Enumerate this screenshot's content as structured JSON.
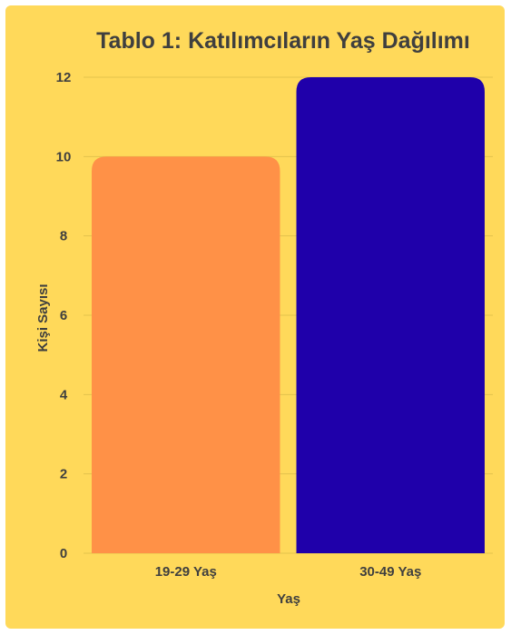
{
  "chart_data": {
    "type": "bar",
    "title": "Tablo 1: Katılımcıların Yaş Dağılımı",
    "xlabel": "Yaş",
    "ylabel": "Kişi Sayısı",
    "categories": [
      "19-29 Yaş",
      "30-49 Yaş"
    ],
    "values": [
      10,
      12
    ],
    "bar_colors": [
      "#ff9147",
      "#1f00aa"
    ],
    "ylim": [
      0,
      12
    ],
    "yticks": [
      "0",
      "2",
      "4",
      "6",
      "8",
      "10",
      "12"
    ],
    "grid": true,
    "legend": "none"
  },
  "colors": {
    "background": "#ffd95a",
    "gridline": "#e3c24c",
    "text": "#3f3f3f"
  }
}
